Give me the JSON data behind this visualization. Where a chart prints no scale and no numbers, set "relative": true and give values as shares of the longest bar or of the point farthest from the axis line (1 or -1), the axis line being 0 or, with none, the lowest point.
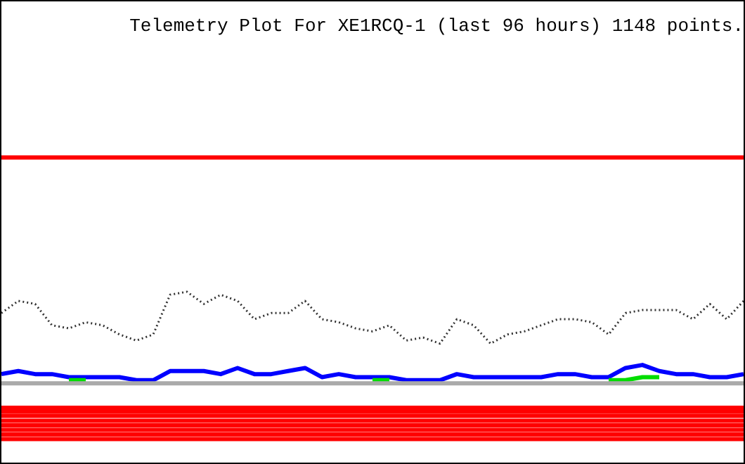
{
  "chart_data": {
    "type": "line",
    "title": "Telemetry Plot For XE1RCQ-1 (last 96 hours) 1148 points.",
    "relative": true,
    "marker": "none",
    "categories": [
      null,
      null,
      null,
      null,
      null,
      null,
      null,
      null,
      null,
      null,
      null,
      null,
      null,
      null,
      null,
      null,
      null,
      null,
      null,
      null,
      null,
      null,
      null,
      null,
      null,
      null,
      null,
      null,
      null,
      null,
      null,
      null,
      null,
      null,
      null,
      null,
      null,
      null,
      null,
      null,
      null,
      null,
      null,
      null,
      null
    ],
    "series": [
      {
        "color": "#ff0000",
        "values": [
          1,
          1,
          1,
          1,
          1,
          1,
          1,
          1,
          1,
          1,
          1,
          1,
          1,
          1,
          1,
          1,
          1,
          1,
          1,
          1,
          1,
          1,
          1,
          1,
          1,
          1,
          1,
          1,
          1,
          1,
          1,
          1,
          1,
          1,
          1,
          1,
          1,
          1,
          1,
          1,
          1,
          1,
          1,
          1,
          1
        ]
      },
      {
        "color": "#333333",
        "line_style": "dotted",
        "values": [
          0.49,
          0.53,
          0.52,
          0.45,
          0.44,
          0.46,
          0.45,
          0.42,
          0.4,
          0.42,
          0.55,
          0.56,
          0.52,
          0.55,
          0.53,
          0.47,
          0.49,
          0.49,
          0.53,
          0.47,
          0.46,
          0.44,
          0.43,
          0.45,
          0.4,
          0.41,
          0.39,
          0.47,
          0.45,
          0.39,
          0.42,
          0.43,
          0.45,
          0.47,
          0.47,
          0.46,
          0.42,
          0.49,
          0.5,
          0.5,
          0.5,
          0.47,
          0.52,
          0.47,
          0.53
        ]
      },
      {
        "color": "#aaaaaa",
        "values": [
          0.26,
          0.26,
          0.26,
          0.26,
          0.26,
          0.26,
          0.26,
          0.26,
          0.26,
          0.26,
          0.26,
          0.26,
          0.26,
          0.26,
          0.26,
          0.26,
          0.26,
          0.26,
          0.26,
          0.26,
          0.26,
          0.26,
          0.26,
          0.26,
          0.26,
          0.26,
          0.26,
          0.26,
          0.26,
          0.26,
          0.26,
          0.26,
          0.26,
          0.26,
          0.26,
          0.26,
          0.26,
          0.26,
          0.26,
          0.26,
          0.26,
          0.26,
          0.26,
          0.26,
          0.26
        ]
      },
      {
        "color": "#00dd00",
        "values": [
          null,
          null,
          null,
          null,
          0.27,
          0.27,
          null,
          null,
          null,
          null,
          null,
          null,
          null,
          null,
          null,
          null,
          null,
          null,
          null,
          null,
          null,
          null,
          0.27,
          0.27,
          null,
          null,
          null,
          null,
          null,
          null,
          null,
          null,
          null,
          null,
          null,
          null,
          0.27,
          0.27,
          0.28,
          0.28,
          null,
          null,
          null,
          null,
          null
        ]
      },
      {
        "color": "#0000ff",
        "values": [
          0.29,
          0.3,
          0.29,
          0.29,
          0.28,
          0.28,
          0.28,
          0.28,
          0.27,
          0.27,
          0.3,
          0.3,
          0.3,
          0.29,
          0.31,
          0.29,
          0.29,
          0.3,
          0.31,
          0.28,
          0.29,
          0.28,
          0.28,
          0.28,
          0.27,
          0.27,
          0.27,
          0.29,
          0.28,
          0.28,
          0.28,
          0.28,
          0.28,
          0.29,
          0.29,
          0.28,
          0.28,
          0.31,
          0.32,
          0.3,
          0.29,
          0.29,
          0.28,
          0.28,
          0.29
        ]
      },
      {
        "color": "#ff0000",
        "values": [
          0.18,
          0.18,
          0.18,
          0.18,
          0.18,
          0.18,
          0.18,
          0.18,
          0.18,
          0.18,
          0.18,
          0.18,
          0.18,
          0.18,
          0.18,
          0.18,
          0.18,
          0.18,
          0.18,
          0.18,
          0.18,
          0.18,
          0.18,
          0.18,
          0.18,
          0.18,
          0.18,
          0.18,
          0.18,
          0.18,
          0.18,
          0.18,
          0.18,
          0.18,
          0.18,
          0.18,
          0.18,
          0.18,
          0.18,
          0.18,
          0.18,
          0.18,
          0.18,
          0.18,
          0.18
        ]
      },
      {
        "color": "#ff0000",
        "values": [
          0.167,
          0.167,
          0.167,
          0.167,
          0.167,
          0.167,
          0.167,
          0.167,
          0.167,
          0.167,
          0.167,
          0.167,
          0.167,
          0.167,
          0.167,
          0.167,
          0.167,
          0.167,
          0.167,
          0.167,
          0.167,
          0.167,
          0.167,
          0.167,
          0.167,
          0.167,
          0.167,
          0.167,
          0.167,
          0.167,
          0.167,
          0.167,
          0.167,
          0.167,
          0.167,
          0.167,
          0.167,
          0.167,
          0.167,
          0.167,
          0.167,
          0.167,
          0.167,
          0.167,
          0.167
        ]
      },
      {
        "color": "#ff0000",
        "values": [
          0.153,
          0.153,
          0.153,
          0.153,
          0.153,
          0.153,
          0.153,
          0.153,
          0.153,
          0.153,
          0.153,
          0.153,
          0.153,
          0.153,
          0.153,
          0.153,
          0.153,
          0.153,
          0.153,
          0.153,
          0.153,
          0.153,
          0.153,
          0.153,
          0.153,
          0.153,
          0.153,
          0.153,
          0.153,
          0.153,
          0.153,
          0.153,
          0.153,
          0.153,
          0.153,
          0.153,
          0.153,
          0.153,
          0.153,
          0.153,
          0.153,
          0.153,
          0.153,
          0.153,
          0.153
        ]
      },
      {
        "color": "#ff0000",
        "values": [
          0.137,
          0.137,
          0.137,
          0.137,
          0.137,
          0.137,
          0.137,
          0.137,
          0.137,
          0.137,
          0.137,
          0.137,
          0.137,
          0.137,
          0.137,
          0.137,
          0.137,
          0.137,
          0.137,
          0.137,
          0.137,
          0.137,
          0.137,
          0.137,
          0.137,
          0.137,
          0.137,
          0.137,
          0.137,
          0.137,
          0.137,
          0.137,
          0.137,
          0.137,
          0.137,
          0.137,
          0.137,
          0.137,
          0.137,
          0.137,
          0.137,
          0.137,
          0.137,
          0.137,
          0.137
        ]
      },
      {
        "color": "#ff0000",
        "values": [
          0.122,
          0.122,
          0.122,
          0.122,
          0.122,
          0.122,
          0.122,
          0.122,
          0.122,
          0.122,
          0.122,
          0.122,
          0.122,
          0.122,
          0.122,
          0.122,
          0.122,
          0.122,
          0.122,
          0.122,
          0.122,
          0.122,
          0.122,
          0.122,
          0.122,
          0.122,
          0.122,
          0.122,
          0.122,
          0.122,
          0.122,
          0.122,
          0.122,
          0.122,
          0.122,
          0.122,
          0.122,
          0.122,
          0.122,
          0.122,
          0.122,
          0.122,
          0.122,
          0.122,
          0.122
        ]
      },
      {
        "color": "#ff0000",
        "values": [
          0.107,
          0.107,
          0.107,
          0.107,
          0.107,
          0.107,
          0.107,
          0.107,
          0.107,
          0.107,
          0.107,
          0.107,
          0.107,
          0.107,
          0.107,
          0.107,
          0.107,
          0.107,
          0.107,
          0.107,
          0.107,
          0.107,
          0.107,
          0.107,
          0.107,
          0.107,
          0.107,
          0.107,
          0.107,
          0.107,
          0.107,
          0.107,
          0.107,
          0.107,
          0.107,
          0.107,
          0.107,
          0.107,
          0.107,
          0.107,
          0.107,
          0.107,
          0.107,
          0.107,
          0.107
        ]
      },
      {
        "color": "#ff0000",
        "values": [
          0.092,
          0.092,
          0.092,
          0.092,
          0.092,
          0.092,
          0.092,
          0.092,
          0.092,
          0.092,
          0.092,
          0.092,
          0.092,
          0.092,
          0.092,
          0.092,
          0.092,
          0.092,
          0.092,
          0.092,
          0.092,
          0.092,
          0.092,
          0.092,
          0.092,
          0.092,
          0.092,
          0.092,
          0.092,
          0.092,
          0.092,
          0.092,
          0.092,
          0.092,
          0.092,
          0.092,
          0.092,
          0.092,
          0.092,
          0.092,
          0.092,
          0.092,
          0.092,
          0.092,
          0.092
        ]
      },
      {
        "color": "#ff0000",
        "values": [
          0.077,
          0.077,
          0.077,
          0.077,
          0.077,
          0.077,
          0.077,
          0.077,
          0.077,
          0.077,
          0.077,
          0.077,
          0.077,
          0.077,
          0.077,
          0.077,
          0.077,
          0.077,
          0.077,
          0.077,
          0.077,
          0.077,
          0.077,
          0.077,
          0.077,
          0.077,
          0.077,
          0.077,
          0.077,
          0.077,
          0.077,
          0.077,
          0.077,
          0.077,
          0.077,
          0.077,
          0.077,
          0.077,
          0.077,
          0.077,
          0.077,
          0.077,
          0.077,
          0.077,
          0.077
        ]
      }
    ]
  }
}
